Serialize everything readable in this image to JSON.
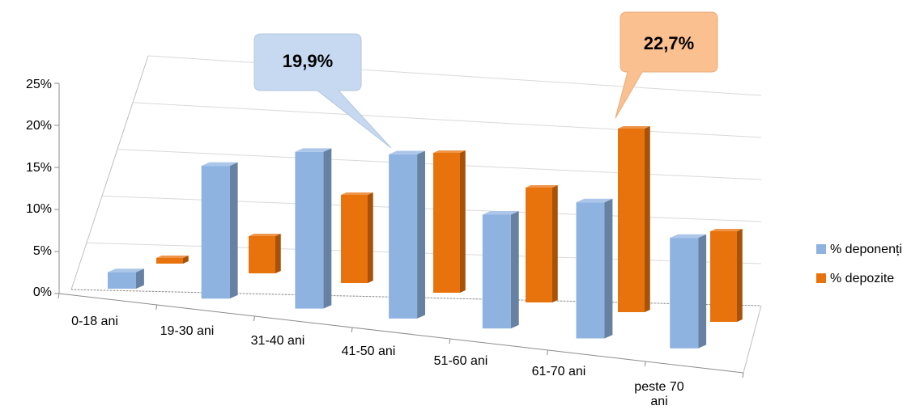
{
  "chart_data": {
    "type": "bar",
    "categories": [
      "0-18 ani",
      "19-30 ani",
      "31-40 ani",
      "41-50 ani",
      "51-60 ani",
      "61-70 ani",
      "peste 70 ani"
    ],
    "series": [
      {
        "name": "% deponenți",
        "color": "#8fb3e1",
        "values": [
          2.0,
          16.1,
          19.0,
          19.9,
          13.8,
          16.5,
          13.4
        ]
      },
      {
        "name": "% depozite",
        "color": "#e8720c",
        "values": [
          0.7,
          4.6,
          10.9,
          17.3,
          14.2,
          22.7,
          11.2
        ]
      }
    ],
    "yticks": [
      "0%",
      "5%",
      "10%",
      "15%",
      "20%",
      "25%"
    ],
    "ylim": [
      0,
      25
    ],
    "grid": true,
    "legend": "right",
    "annotations": [
      {
        "text": "19,9%",
        "series": 0,
        "category": 3,
        "color": "#c6d9f1"
      },
      {
        "text": "22,7%",
        "series": 1,
        "category": 5,
        "color": "#fac090"
      }
    ]
  }
}
